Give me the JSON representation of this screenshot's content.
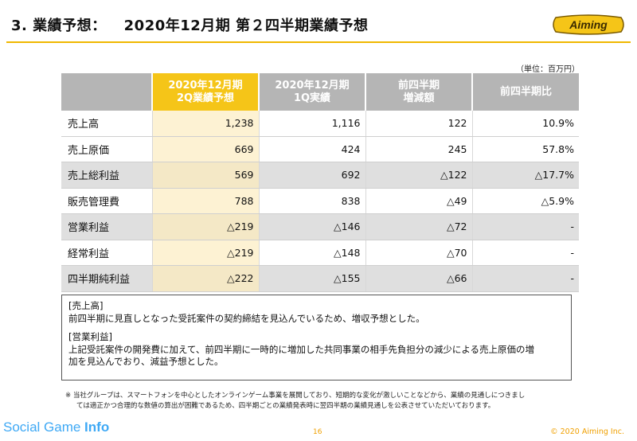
{
  "header": {
    "section": "3. 業績予想：",
    "subtitle": "2020年12月期 第２四半期業績予想",
    "logo_text": "Aiming",
    "accent_color": "#f5c518"
  },
  "unit": "（単位：百万円）",
  "table": {
    "columns": [
      {
        "line1": "",
        "line2": ""
      },
      {
        "line1": "2020年12月期",
        "line2": "2Q業績予想"
      },
      {
        "line1": "2020年12月期",
        "line2": "1Q実績"
      },
      {
        "line1": "前四半期",
        "line2": "増減額"
      },
      {
        "line1": "前四半期比",
        "line2": ""
      }
    ],
    "rows": [
      [
        "売上高",
        "1,238",
        "1,116",
        "122",
        "10.9%"
      ],
      [
        "売上原価",
        "669",
        "424",
        "245",
        "57.8%"
      ],
      [
        "売上総利益",
        "569",
        "692",
        "△122",
        "△17.7%"
      ],
      [
        "販売管理費",
        "788",
        "838",
        "△49",
        "△5.9%"
      ],
      [
        "営業利益",
        "△219",
        "△146",
        "△72",
        "-"
      ],
      [
        "経常利益",
        "△219",
        "△148",
        "△70",
        "-"
      ],
      [
        "四半期純利益",
        "△222",
        "△155",
        "△66",
        "-"
      ]
    ]
  },
  "notes": {
    "sales_heading": "[売上高]",
    "sales_text": "前四半期に見直しとなった受託案件の契約締結を見込んでいるため、増収予想とした。",
    "op_heading": "[営業利益]",
    "op_text_1": "上記受託案件の開発費に加えて、前四半期に一時的に増加した共同事業の相手先負担分の減少による売上原価の増",
    "op_text_2": "加を見込んでおり、減益予想とした。"
  },
  "footnote": {
    "line1": "※ 当社グループは、スマートフォンを中心としたオンラインゲーム事業を展開しており、短期的な変化が激しいことなどから、業績の見通しにつきまし",
    "line2": "ては適正かつ合理的な数値の算出が困難であるため、四半期ごとの業績発表時に翌四半期の業績見通しを公表させていただいております。"
  },
  "footer": {
    "brand_part1": "Social Game ",
    "brand_part2": "Info",
    "page_number": "16",
    "copyright": "© 2020 Aiming Inc."
  }
}
